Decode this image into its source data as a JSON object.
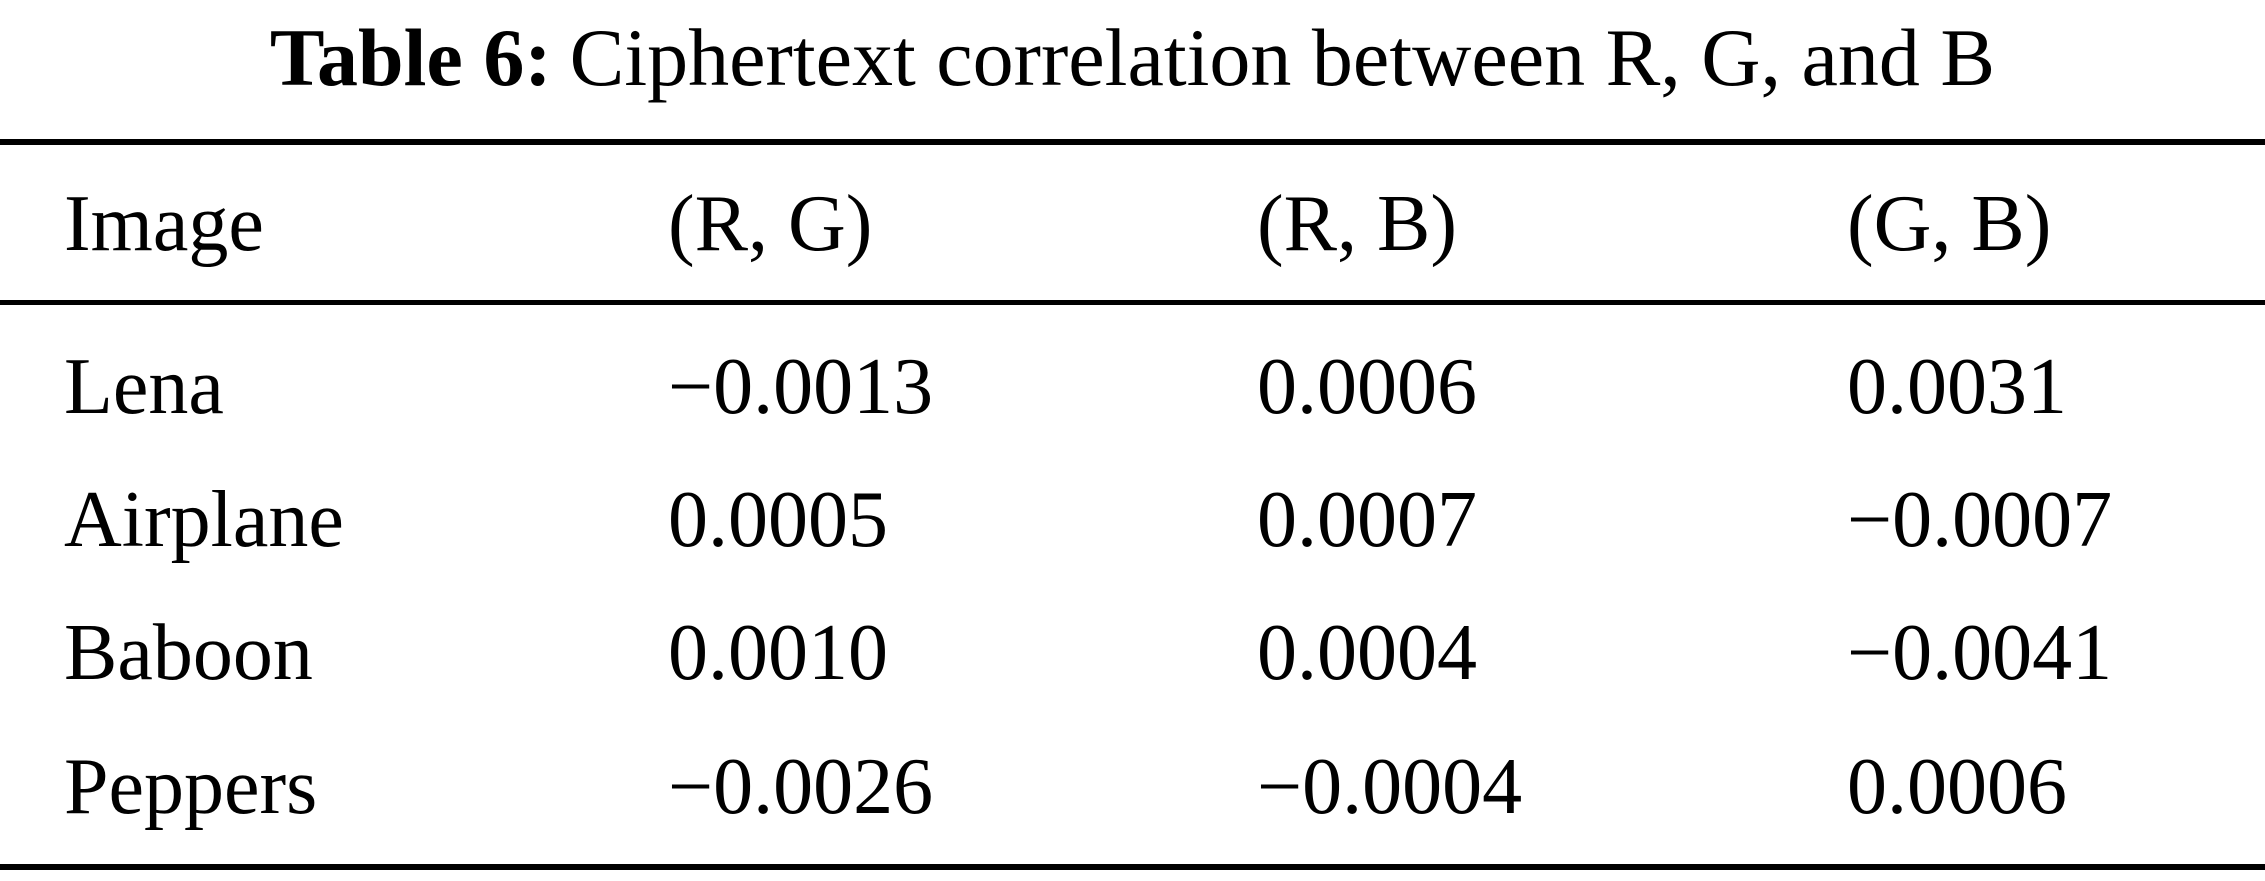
{
  "caption": {
    "label": "Table 6:",
    "text": "Ciphertext correlation between R, G, and B"
  },
  "table": {
    "headers": [
      "Image",
      "(R, G)",
      "(R, B)",
      "(G, B)"
    ],
    "rows": [
      [
        "Lena",
        "−0.0013",
        "0.0006",
        "0.0031"
      ],
      [
        "Airplane",
        "0.0005",
        "0.0007",
        "−0.0007"
      ],
      [
        "Baboon",
        "0.0010",
        "0.0004",
        "−0.0041"
      ],
      [
        "Peppers",
        "−0.0026",
        "−0.0004",
        "0.0006"
      ]
    ]
  }
}
